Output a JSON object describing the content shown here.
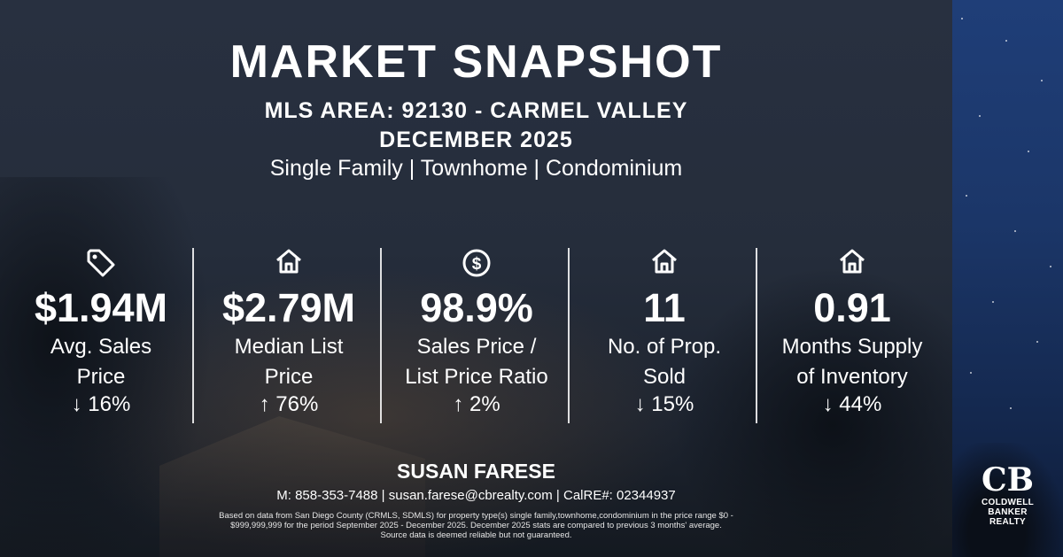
{
  "header": {
    "title": "MARKET SNAPSHOT",
    "area": "MLS AREA: 92130 - CARMEL VALLEY",
    "month": "DECEMBER 2025",
    "property_types": "Single Family | Townhome | Condominium"
  },
  "stats": [
    {
      "icon": "price-tag-icon",
      "value": "$1.94M",
      "label_line1": "Avg. Sales",
      "label_line2": "Price",
      "change": "↓ 16%"
    },
    {
      "icon": "house-icon",
      "value": "$2.79M",
      "label_line1": "Median List",
      "label_line2": "Price",
      "change": "↑ 76%"
    },
    {
      "icon": "dollar-circle-icon",
      "value": "98.9%",
      "label_line1": "Sales Price /",
      "label_line2": "List Price Ratio",
      "change": "↑ 2%"
    },
    {
      "icon": "house-icon",
      "value": "11",
      "label_line1": "No. of Prop.",
      "label_line2": "Sold",
      "change": "↓ 15%"
    },
    {
      "icon": "house-icon",
      "value": "0.91",
      "label_line1": "Months Supply",
      "label_line2": "of Inventory",
      "change": "↓ 44%"
    }
  ],
  "agent": {
    "name": "SUSAN FARESE",
    "contact": "M: 858-353-7488 | susan.farese@cbrealty.com | CalRE#: 02344937"
  },
  "disclaimer": {
    "line1": "Based on data from San Diego County (CRMLS, SDMLS) for property type(s) single family,townhome,condominium in the price range $0 -",
    "line2": "$999,999,999 for the period September 2025 - December 2025. December 2025 stats are compared to previous 3 months' average.",
    "line3": "Source data is deemed reliable but not guaranteed."
  },
  "brand": {
    "logo_line1": "COLDWELL",
    "logo_line2": "BANKER",
    "logo_line3": "REALTY",
    "panel_color": "#283040",
    "sky_color": "#1f3e78"
  }
}
